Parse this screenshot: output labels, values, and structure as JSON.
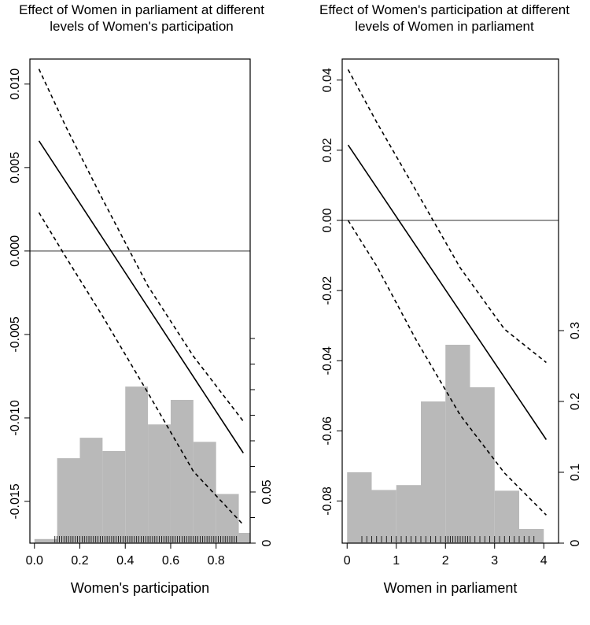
{
  "chart_data": [
    {
      "type": "line",
      "title": "Effect of Women in parliament at different levels of Women's participation",
      "xlabel": "Women's participation",
      "ylabel": "",
      "xlim": [
        -0.02,
        0.95
      ],
      "ylim": [
        -0.0175,
        0.0115
      ],
      "xticks": [
        0.0,
        0.2,
        0.4,
        0.6,
        0.8
      ],
      "xtick_labels": [
        "0.0",
        "0.2",
        "0.4",
        "0.6",
        "0.8"
      ],
      "yticks": [
        0.01,
        0.005,
        0.0,
        -0.005,
        -0.01,
        -0.015
      ],
      "ytick_labels": [
        "0.010",
        "0.005",
        "0.000",
        "-0.005",
        "-0.010",
        "-0.015"
      ],
      "zero_line": 0,
      "series": [
        {
          "style": "solid",
          "x": [
            0.02,
            0.92
          ],
          "y": [
            0.0066,
            -0.0121
          ]
        },
        {
          "style": "dashed",
          "x": [
            0.02,
            0.14,
            0.3,
            0.5,
            0.7,
            0.92
          ],
          "y": [
            0.0109,
            0.0074,
            0.0031,
            -0.0021,
            -0.0063,
            -0.0102
          ]
        },
        {
          "style": "dashed",
          "x": [
            0.02,
            0.14,
            0.3,
            0.5,
            0.7,
            0.92
          ],
          "y": [
            0.0023,
            -0.0004,
            -0.0039,
            -0.0085,
            -0.0132,
            -0.0164
          ]
        }
      ],
      "histogram": {
        "bin_edges": [
          0.0,
          0.1,
          0.2,
          0.3,
          0.4,
          0.5,
          0.6,
          0.7,
          0.8,
          0.9,
          0.95
        ],
        "density": [
          0.004,
          0.083,
          0.103,
          0.09,
          0.153,
          0.116,
          0.14,
          0.099,
          0.048,
          0.01
        ],
        "right_axis_ticks": [
          0,
          0.05
        ],
        "right_axis_labels": [
          "0",
          "0.05"
        ],
        "right_axis_range": [
          0,
          0.2
        ],
        "right_axis_minor_ticks": [
          0.025,
          0.075,
          0.1,
          0.125,
          0.15,
          0.175,
          0.2
        ],
        "color": "#b9b9b9"
      },
      "rug": [
        0.09,
        0.1,
        0.11,
        0.12,
        0.13,
        0.14,
        0.15,
        0.16,
        0.17,
        0.18,
        0.19,
        0.2,
        0.21,
        0.22,
        0.23,
        0.24,
        0.25,
        0.26,
        0.27,
        0.28,
        0.29,
        0.3,
        0.31,
        0.32,
        0.33,
        0.34,
        0.35,
        0.36,
        0.37,
        0.38,
        0.39,
        0.4,
        0.41,
        0.42,
        0.43,
        0.44,
        0.45,
        0.46,
        0.47,
        0.48,
        0.49,
        0.5,
        0.51,
        0.52,
        0.53,
        0.54,
        0.55,
        0.56,
        0.57,
        0.58,
        0.59,
        0.6,
        0.61,
        0.62,
        0.63,
        0.64,
        0.65,
        0.66,
        0.67,
        0.68,
        0.69,
        0.7,
        0.71,
        0.72,
        0.73,
        0.74,
        0.75,
        0.76,
        0.77,
        0.78,
        0.79,
        0.8,
        0.81,
        0.82,
        0.83,
        0.84,
        0.85,
        0.86,
        0.87,
        0.88,
        0.89
      ]
    },
    {
      "type": "line",
      "title": "Effect of Women's participation at different levels of Women in parliament",
      "xlabel": "Women in parliament",
      "ylabel": "",
      "xlim": [
        -0.1,
        4.3
      ],
      "ylim": [
        -0.092,
        0.046
      ],
      "xticks": [
        0,
        1,
        2,
        3,
        4
      ],
      "xtick_labels": [
        "0",
        "1",
        "2",
        "3",
        "4"
      ],
      "yticks": [
        0.04,
        0.02,
        0.0,
        -0.02,
        -0.04,
        -0.06,
        -0.08
      ],
      "ytick_labels": [
        "0.04",
        "0.02",
        "0.00",
        "-0.02",
        "-0.04",
        "-0.06",
        "-0.08"
      ],
      "zero_line": 0,
      "series": [
        {
          "style": "solid",
          "x": [
            0.02,
            4.05
          ],
          "y": [
            0.0215,
            -0.0625
          ]
        },
        {
          "style": "dashed",
          "x": [
            0.02,
            0.6,
            1.4,
            2.3,
            3.2,
            4.05
          ],
          "y": [
            0.043,
            0.028,
            0.0085,
            -0.0135,
            -0.031,
            -0.0405
          ]
        },
        {
          "style": "dashed",
          "x": [
            0.02,
            0.6,
            1.4,
            2.3,
            3.2,
            4.05
          ],
          "y": [
            0.0,
            -0.013,
            -0.034,
            -0.0555,
            -0.072,
            -0.084
          ]
        }
      ],
      "histogram": {
        "bin_edges": [
          0,
          0.5,
          1.0,
          1.5,
          2.0,
          2.5,
          3.0,
          3.5,
          4.0
        ],
        "density": [
          0.1,
          0.075,
          0.082,
          0.2,
          0.28,
          0.22,
          0.074,
          0.02
        ],
        "right_axis_ticks": [
          0,
          0.1,
          0.2,
          0.3
        ],
        "right_axis_labels": [
          "0",
          "0.1",
          "0.2",
          "0.3"
        ],
        "right_axis_range": [
          0,
          0.3
        ],
        "right_axis_minor_ticks": [],
        "color": "#b9b9b9"
      },
      "rug": [
        0.3,
        0.4,
        0.5,
        0.6,
        0.7,
        0.8,
        0.9,
        1.0,
        1.1,
        1.2,
        1.3,
        1.4,
        1.5,
        1.6,
        1.7,
        1.8,
        1.9,
        2.0,
        2.05,
        2.1,
        2.15,
        2.2,
        2.25,
        2.3,
        2.35,
        2.4,
        2.45,
        2.5,
        2.6,
        2.7,
        2.8,
        2.9,
        3.0,
        3.1,
        3.2,
        3.3,
        3.4,
        3.5,
        3.6,
        3.7,
        3.8
      ]
    }
  ]
}
